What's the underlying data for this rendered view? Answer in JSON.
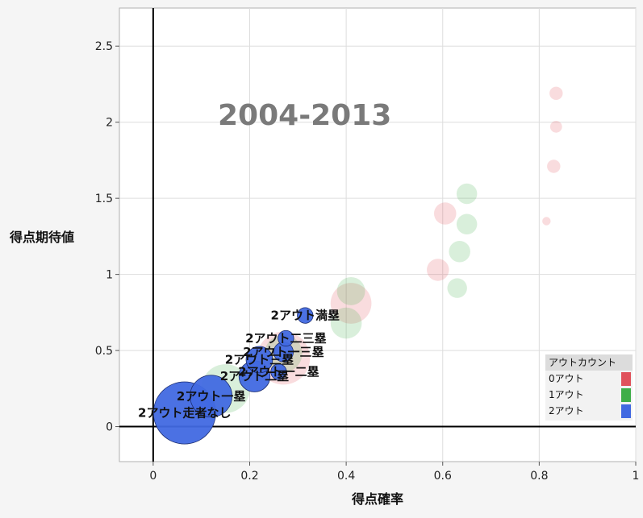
{
  "chart_data": {
    "type": "scatter",
    "xlabel": "得点確率",
    "ylabel": "得点期待値",
    "xlim": [
      -0.07,
      1.0
    ],
    "ylim": [
      -0.23,
      2.75
    ],
    "x_ticks": [
      "0",
      "0.2",
      "0.4",
      "0.6",
      "0.8",
      "1"
    ],
    "x_tick_values": [
      0,
      0.2,
      0.4,
      0.6,
      0.8,
      1.0
    ],
    "y_ticks": [
      "0",
      "0.5",
      "1",
      "1.5",
      "2",
      "2.5"
    ],
    "y_tick_values": [
      0,
      0.5,
      1,
      1.5,
      2,
      2.5
    ],
    "grid": true,
    "watermark": "2004-2013",
    "legend": {
      "title": "アウトカウント",
      "placement": "bottom-right",
      "items": [
        {
          "label": "0アウト",
          "color": "#e0525c"
        },
        {
          "label": "1アウト",
          "color": "#3fae49"
        },
        {
          "label": "2アウト",
          "color": "#4169e1"
        }
      ]
    },
    "series": [
      {
        "name": "0アウト",
        "color": "#e0525c",
        "opacity": 0.2,
        "points": [
          {
            "x": 0.835,
            "y": 2.19,
            "size": 0.1
          },
          {
            "x": 0.835,
            "y": 1.97,
            "size": 0.08
          },
          {
            "x": 0.83,
            "y": 1.71,
            "size": 0.1
          },
          {
            "x": 0.815,
            "y": 1.35,
            "size": 0.04
          },
          {
            "x": 0.605,
            "y": 1.4,
            "size": 0.28
          },
          {
            "x": 0.59,
            "y": 1.03,
            "size": 0.28
          },
          {
            "x": 0.41,
            "y": 0.81,
            "size": 0.95
          },
          {
            "x": 0.27,
            "y": 0.45,
            "size": 1.6
          }
        ]
      },
      {
        "name": "1アウト",
        "color": "#3fae49",
        "opacity": 0.2,
        "points": [
          {
            "x": 0.65,
            "y": 1.53,
            "size": 0.24
          },
          {
            "x": 0.65,
            "y": 1.33,
            "size": 0.24
          },
          {
            "x": 0.635,
            "y": 1.15,
            "size": 0.26
          },
          {
            "x": 0.63,
            "y": 0.91,
            "size": 0.22
          },
          {
            "x": 0.41,
            "y": 0.89,
            "size": 0.45
          },
          {
            "x": 0.4,
            "y": 0.68,
            "size": 0.55
          },
          {
            "x": 0.27,
            "y": 0.48,
            "size": 0.8
          },
          {
            "x": 0.15,
            "y": 0.25,
            "size": 1.35
          }
        ]
      },
      {
        "name": "2アウト",
        "color": "#4169e1",
        "opacity": 0.95,
        "points": [
          {
            "x": 0.315,
            "y": 0.73,
            "size": 0.14,
            "label": "2アウト満塁"
          },
          {
            "x": 0.275,
            "y": 0.58,
            "size": 0.14,
            "label": "2アウト二三塁"
          },
          {
            "x": 0.27,
            "y": 0.49,
            "size": 0.22,
            "label": "2アウト一三塁"
          },
          {
            "x": 0.22,
            "y": 0.44,
            "size": 0.4,
            "label": "2アウト三塁"
          },
          {
            "x": 0.26,
            "y": 0.36,
            "size": 0.14,
            "label": "2アウト一二塁"
          },
          {
            "x": 0.21,
            "y": 0.33,
            "size": 0.55,
            "label": "2アウト二塁"
          },
          {
            "x": 0.12,
            "y": 0.2,
            "size": 1.0,
            "label": "2アウト一塁"
          },
          {
            "x": 0.065,
            "y": 0.09,
            "size": 2.2,
            "label": "2アウト走者なし"
          }
        ]
      }
    ]
  }
}
